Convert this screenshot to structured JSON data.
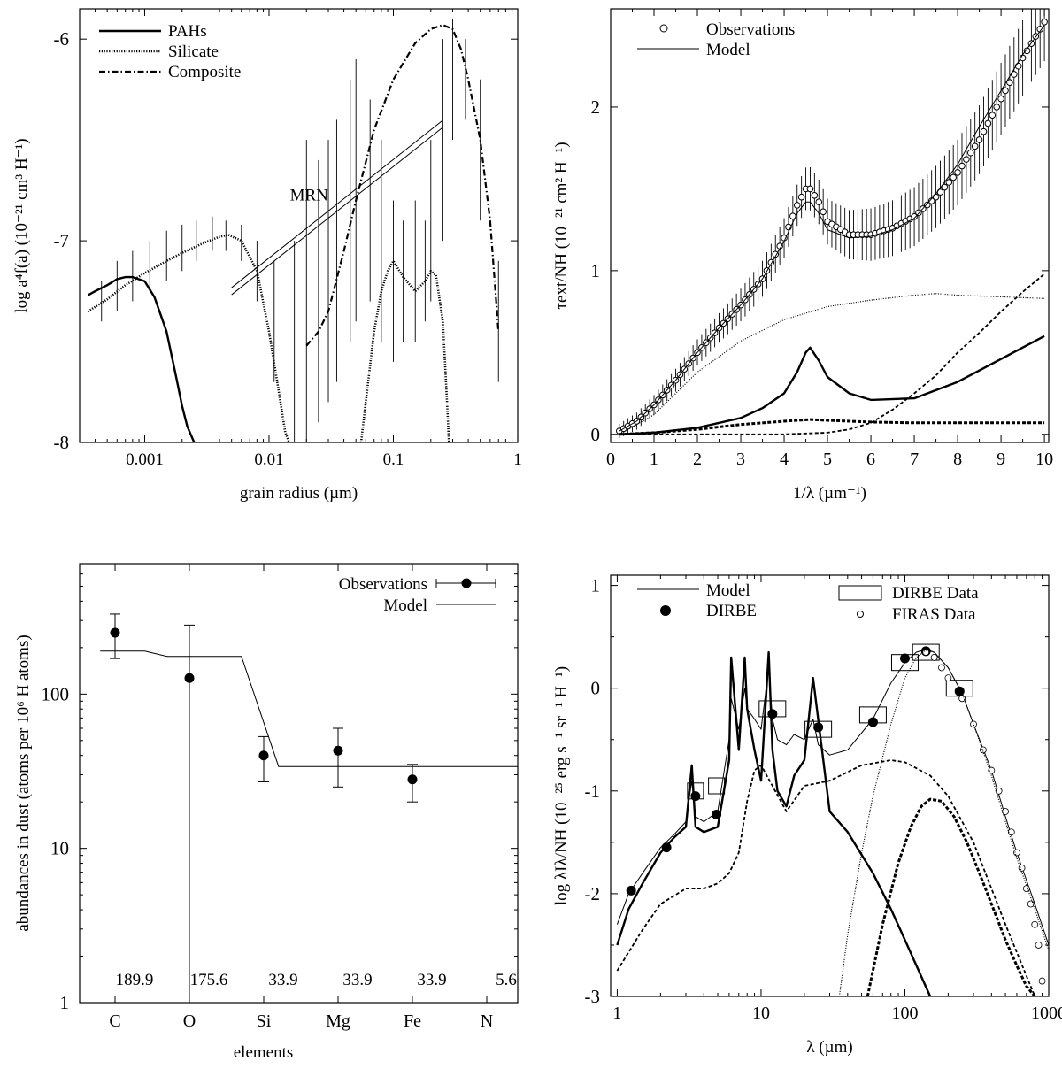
{
  "chart_data": [
    {
      "panel": "top-left",
      "type": "line",
      "xlabel": "grain radius  (µm)",
      "ylabel": "log a⁴f(a)  (10⁻²¹ cm³ H⁻¹)",
      "xscale": "log",
      "xlim": [
        0.0003,
        1
      ],
      "ylim": [
        -8,
        -5.85
      ],
      "xticks": [
        0.001,
        0.01,
        0.1,
        1
      ],
      "xtick_labels": [
        "0.001",
        "0.01",
        "0.1",
        "1"
      ],
      "yticks": [
        -8,
        -7,
        -6
      ],
      "ytick_labels": [
        "-8",
        "-7",
        "-6"
      ],
      "legend_position": "top-left",
      "annotation": "MRN",
      "series": [
        {
          "name": "PAHs",
          "style": "solid-thick",
          "x": [
            0.00035,
            0.0004,
            0.0005,
            0.0006,
            0.0007,
            0.0008,
            0.001,
            0.0012,
            0.0015,
            0.0018,
            0.002,
            0.0022,
            0.0025
          ],
          "y": [
            -7.27,
            -7.25,
            -7.22,
            -7.19,
            -7.18,
            -7.18,
            -7.2,
            -7.28,
            -7.45,
            -7.68,
            -7.82,
            -7.92,
            -8.0
          ]
        },
        {
          "name": "Silicate",
          "style": "dotted-thick",
          "x": [
            0.00035,
            0.0005,
            0.0007,
            0.001,
            0.0015,
            0.002,
            0.003,
            0.004,
            0.0047,
            0.006,
            0.008,
            0.01,
            0.012,
            0.0135,
            0.0145
          ],
          "y": [
            -7.35,
            -7.29,
            -7.22,
            -7.16,
            -7.1,
            -7.06,
            -7.01,
            -6.98,
            -6.97,
            -7.0,
            -7.15,
            -7.45,
            -7.75,
            -7.95,
            -8.0
          ]
        },
        {
          "name": "Silicate",
          "style": "dotted-thick",
          "x": [
            0.055,
            0.06,
            0.07,
            0.08,
            0.09,
            0.1,
            0.12,
            0.15,
            0.18,
            0.2,
            0.22,
            0.25,
            0.27,
            0.28
          ],
          "y": [
            -8.0,
            -7.8,
            -7.45,
            -7.25,
            -7.15,
            -7.1,
            -7.18,
            -7.25,
            -7.2,
            -7.15,
            -7.17,
            -7.4,
            -7.8,
            -8.0
          ]
        },
        {
          "name": "Composite",
          "style": "dashdot-thick",
          "x": [
            0.02,
            0.025,
            0.03,
            0.04,
            0.05,
            0.07,
            0.1,
            0.15,
            0.2,
            0.25,
            0.3,
            0.35,
            0.4,
            0.5,
            0.6,
            0.7
          ],
          "y": [
            -7.52,
            -7.45,
            -7.35,
            -7.05,
            -6.8,
            -6.45,
            -6.2,
            -6.02,
            -5.95,
            -5.93,
            -5.95,
            -6.05,
            -6.2,
            -6.5,
            -6.9,
            -7.45
          ]
        },
        {
          "name": "MRN",
          "style": "double-thin",
          "x": [
            0.005,
            0.25
          ],
          "y": [
            -7.25,
            -6.42
          ]
        }
      ]
    },
    {
      "panel": "top-right",
      "type": "line",
      "xlabel": "1/λ  (µm⁻¹)",
      "ylabel": "τext/NH  (10⁻²¹ cm² H⁻¹)",
      "xlim": [
        0,
        10.1
      ],
      "ylim": [
        -0.05,
        2.6
      ],
      "xticks": [
        0,
        1,
        2,
        3,
        4,
        5,
        6,
        7,
        8,
        9,
        10
      ],
      "yticks": [
        0,
        1,
        2
      ],
      "legend_position": "top-left",
      "series": [
        {
          "name": "Observations",
          "style": "open-circles-with-errorbars",
          "x": [
            0.2,
            0.6,
            1.0,
            1.5,
            2.0,
            2.5,
            3.0,
            3.5,
            4.0,
            4.3,
            4.5,
            4.6,
            4.8,
            5.0,
            5.5,
            6.0,
            6.5,
            7.0,
            7.5,
            8.0,
            8.5,
            9.0,
            9.5,
            10.0
          ],
          "y": [
            0.02,
            0.08,
            0.18,
            0.33,
            0.5,
            0.65,
            0.79,
            0.95,
            1.2,
            1.4,
            1.5,
            1.5,
            1.42,
            1.3,
            1.22,
            1.22,
            1.26,
            1.33,
            1.45,
            1.6,
            1.8,
            2.05,
            2.3,
            2.52
          ]
        },
        {
          "name": "Model",
          "style": "solid-thin",
          "x": [
            0.2,
            0.6,
            1.0,
            1.5,
            2.0,
            2.5,
            3.0,
            3.5,
            4.0,
            4.3,
            4.5,
            4.6,
            4.8,
            5.0,
            5.5,
            6.0,
            6.5,
            7.0,
            7.5,
            8.0,
            8.5,
            9.0,
            9.5,
            10.0
          ],
          "y": [
            0.02,
            0.08,
            0.18,
            0.33,
            0.5,
            0.65,
            0.79,
            0.95,
            1.18,
            1.35,
            1.42,
            1.42,
            1.35,
            1.25,
            1.2,
            1.21,
            1.25,
            1.32,
            1.47,
            1.65,
            1.88,
            2.1,
            2.32,
            2.5
          ]
        },
        {
          "style": "dotted-thin",
          "x": [
            0.2,
            1,
            2,
            3,
            4,
            5,
            6,
            7,
            7.5,
            8,
            9,
            10
          ],
          "y": [
            0.0,
            0.12,
            0.38,
            0.57,
            0.7,
            0.78,
            0.82,
            0.85,
            0.86,
            0.85,
            0.84,
            0.83
          ]
        },
        {
          "style": "solid-thick",
          "x": [
            0.2,
            1,
            2,
            3,
            3.5,
            4.0,
            4.3,
            4.5,
            4.6,
            4.8,
            5.0,
            5.5,
            6.0,
            7.0,
            8.0,
            9.0,
            10.0
          ],
          "y": [
            0.0,
            0.01,
            0.04,
            0.1,
            0.16,
            0.25,
            0.38,
            0.5,
            0.53,
            0.45,
            0.35,
            0.25,
            0.21,
            0.22,
            0.32,
            0.46,
            0.6
          ]
        },
        {
          "style": "dashed-thick",
          "x": [
            0.2,
            1,
            2,
            3,
            4,
            4.6,
            5,
            6,
            7,
            8,
            9,
            10
          ],
          "y": [
            0.0,
            0.01,
            0.03,
            0.06,
            0.08,
            0.09,
            0.085,
            0.075,
            0.07,
            0.07,
            0.07,
            0.07
          ]
        },
        {
          "style": "dashed-medium",
          "x": [
            0.2,
            1,
            2,
            3,
            4,
            5,
            5.5,
            6,
            6.5,
            7,
            7.5,
            8,
            8.5,
            9,
            9.5,
            10
          ],
          "y": [
            0.0,
            0.0,
            0.0,
            0.0,
            0.0,
            0.01,
            0.03,
            0.07,
            0.15,
            0.25,
            0.36,
            0.5,
            0.62,
            0.75,
            0.87,
            0.98
          ]
        }
      ]
    },
    {
      "panel": "bottom-left",
      "type": "scatter",
      "xlabel": "elements",
      "ylabel": "abundances in dust  (atoms per 10⁶ H atoms)",
      "yscale": "log",
      "ylim": [
        1,
        700
      ],
      "categories": [
        "C",
        "O",
        "Si",
        "Mg",
        "Fe",
        "N"
      ],
      "yticks": [
        1,
        10,
        100
      ],
      "legend_position": "top-right",
      "model_values": [
        189.9,
        175.6,
        33.9,
        33.9,
        33.9,
        5.6
      ],
      "model_value_labels": [
        "189.9",
        "175.6",
        "33.9",
        "33.9",
        "33.9",
        "5.6"
      ],
      "series": [
        {
          "name": "Observations",
          "style": "filled-circles-with-errorbars",
          "values": [
            250,
            127,
            40,
            43,
            28,
            null
          ],
          "err_low": [
            170,
            1,
            27,
            25,
            20,
            null
          ],
          "err_high": [
            330,
            280,
            53,
            60,
            35,
            null
          ]
        },
        {
          "name": "Model",
          "style": "solid-thin",
          "x": [
            0.8,
            1.4,
            1.7,
            2.7,
            3.2,
            6.9,
            7.4,
            8.8
          ],
          "y": [
            189.9,
            189.9,
            175.6,
            175.6,
            33.9,
            33.9,
            5.6,
            5.6
          ]
        }
      ]
    },
    {
      "panel": "bottom-right",
      "type": "line",
      "xlabel": "λ  (µm)",
      "ylabel": "log λIλ/NH  (10⁻²⁵ erg s⁻¹ sr⁻¹ H⁻¹)",
      "xscale": "log",
      "xlim": [
        0.9,
        1000
      ],
      "ylim": [
        -3,
        1.1
      ],
      "xticks": [
        1,
        10,
        100,
        1000
      ],
      "yticks": [
        -3,
        -2,
        -1,
        0,
        1
      ],
      "legend_position": "top",
      "series": [
        {
          "name": "Model",
          "style": "solid-thin",
          "x": [
            1,
            1.2,
            1.5,
            2,
            2.5,
            3,
            3.3,
            3.5,
            4,
            5,
            6,
            6.2,
            7,
            7.7,
            8,
            9,
            10,
            11.3,
            12,
            13,
            15,
            17,
            20,
            23,
            25,
            30,
            40,
            60,
            80,
            100,
            120,
            140,
            160,
            200,
            250,
            300,
            400,
            500,
            600,
            800,
            1000
          ],
          "y": [
            -2.3,
            -2.0,
            -1.8,
            -1.55,
            -1.42,
            -1.3,
            -0.9,
            -1.25,
            -1.3,
            -1.2,
            -0.5,
            -0.1,
            -0.4,
            0.0,
            -0.2,
            -0.3,
            -0.4,
            0.2,
            -0.3,
            -0.5,
            -0.55,
            -0.45,
            -0.5,
            -0.3,
            -0.55,
            -0.65,
            -0.6,
            -0.3,
            0.05,
            0.25,
            0.35,
            0.38,
            0.35,
            0.2,
            -0.05,
            -0.35,
            -0.8,
            -1.25,
            -1.6,
            -2.1,
            -2.5
          ]
        },
        {
          "name": "DIRBE",
          "style": "filled-circles",
          "x": [
            1.25,
            2.2,
            3.5,
            4.9,
            12,
            25,
            60,
            100,
            140,
            240
          ],
          "y": [
            -1.97,
            -1.55,
            -1.05,
            -1.23,
            -0.25,
            -0.38,
            -0.33,
            0.29,
            0.36,
            -0.03
          ]
        },
        {
          "name": "DIRBE Data",
          "style": "open-rectangles",
          "x": [
            3.5,
            4.9,
            12,
            25,
            60,
            100,
            140,
            240
          ],
          "y": [
            -1.0,
            -0.95,
            -0.2,
            -0.4,
            -0.26,
            0.25,
            0.35,
            0.0
          ]
        },
        {
          "name": "FIRAS Data",
          "style": "open-small-circles",
          "x": [
            140,
            160,
            180,
            200,
            250,
            300,
            350,
            400,
            450,
            500,
            550,
            600,
            650,
            700,
            750,
            800,
            850,
            900
          ],
          "y": [
            0.35,
            0.3,
            0.2,
            0.1,
            -0.1,
            -0.35,
            -0.6,
            -0.8,
            -1.0,
            -1.2,
            -1.4,
            -1.6,
            -1.75,
            -1.95,
            -2.1,
            -2.3,
            -2.5,
            -2.85
          ]
        },
        {
          "style": "solid-thick",
          "x": [
            1,
            1.2,
            1.5,
            2,
            2.5,
            3,
            3.3,
            3.5,
            4,
            5,
            6,
            6.2,
            7,
            7.7,
            8,
            9,
            10,
            11.3,
            12,
            13,
            15,
            17,
            20,
            23,
            30,
            40,
            60,
            80,
            100,
            150
          ],
          "y": [
            -2.5,
            -2.15,
            -1.9,
            -1.6,
            -1.45,
            -1.35,
            -0.75,
            -1.35,
            -1.4,
            -1.35,
            -0.7,
            0.3,
            -0.6,
            0.3,
            -0.2,
            -0.6,
            -0.9,
            0.35,
            -0.6,
            -1.0,
            -1.15,
            -0.85,
            -0.7,
            0.1,
            -1.2,
            -1.4,
            -1.8,
            -2.15,
            -2.45,
            -3.0
          ]
        },
        {
          "style": "dashed-medium",
          "x": [
            1,
            1.5,
            2,
            3,
            4,
            5,
            6,
            7,
            8,
            9,
            10,
            12,
            15,
            20,
            30,
            50,
            80,
            100,
            150,
            200,
            300,
            500,
            800
          ],
          "y": [
            -2.75,
            -2.35,
            -2.1,
            -1.95,
            -1.95,
            -1.9,
            -1.8,
            -1.6,
            -1.1,
            -0.8,
            -0.75,
            -0.95,
            -1.2,
            -0.95,
            -0.9,
            -0.75,
            -0.7,
            -0.72,
            -0.85,
            -1.05,
            -1.5,
            -2.3,
            -3.0
          ]
        },
        {
          "style": "dotted-thin",
          "x": [
            35,
            40,
            50,
            60,
            80,
            100,
            120,
            140,
            160,
            200,
            250,
            300,
            400,
            500,
            600,
            800,
            1000
          ],
          "y": [
            -3.0,
            -2.4,
            -1.6,
            -1.05,
            -0.35,
            0.1,
            0.3,
            0.37,
            0.35,
            0.2,
            -0.05,
            -0.35,
            -0.85,
            -1.3,
            -1.65,
            -2.15,
            -2.55
          ]
        },
        {
          "style": "dashed-thick",
          "x": [
            55,
            70,
            90,
            110,
            130,
            150,
            180,
            220,
            270,
            330,
            400,
            500,
            600,
            700,
            800
          ],
          "y": [
            -3.0,
            -2.3,
            -1.7,
            -1.35,
            -1.15,
            -1.08,
            -1.1,
            -1.25,
            -1.5,
            -1.8,
            -2.1,
            -2.45,
            -2.7,
            -2.9,
            -3.0
          ]
        }
      ]
    }
  ]
}
